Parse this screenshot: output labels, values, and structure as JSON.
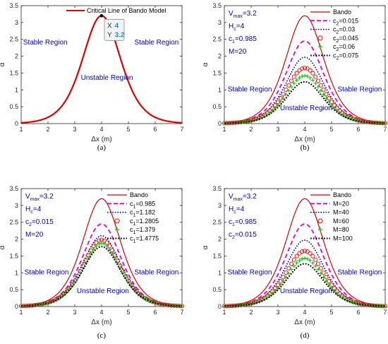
{
  "colors": {
    "bando": "#e00000",
    "c015": "#dd00dd",
    "c03": "#0000cc",
    "c045": "#ff0000",
    "c06": "#00bb00",
    "c075": "#000000",
    "text_blue": "#0000cc",
    "datatip_value": "#1a8fd8"
  },
  "chart_data": [
    {
      "type": "line",
      "panel": "(a)",
      "caption": "(a)",
      "xlabel": "Δx (m)",
      "ylabel": "α",
      "xlim": [
        1,
        7
      ],
      "ylim": [
        0,
        3.5
      ],
      "xticks": [
        "1",
        "2",
        "3",
        "4",
        "5",
        "6",
        "7"
      ],
      "yticks": [
        "0",
        "0.5",
        "1",
        "1.5",
        "2",
        "2.5",
        "3",
        "3.5"
      ],
      "legend": [
        "Critical Line of Bando Model"
      ],
      "legend_position": "top-center",
      "grid": false,
      "series": [
        {
          "name": "Critical Line of Bando Model",
          "peak_x": 4,
          "peak_y": 3.2,
          "style": "line",
          "color": "#e00000"
        }
      ],
      "params": [],
      "annotations": [
        {
          "text": "Stable Region",
          "side": "left"
        },
        {
          "text": "Stable Region",
          "side": "right"
        },
        {
          "text": "Unstable Region",
          "side": "center"
        }
      ],
      "datatip": {
        "x_label": "X",
        "x_value": "4",
        "y_label": "Y",
        "y_value": "3.2"
      }
    },
    {
      "type": "line",
      "panel": "(b)",
      "caption": "(b)",
      "xlabel": "Δx (m)",
      "ylabel": "α",
      "xlim": [
        1,
        7
      ],
      "ylim": [
        0,
        3.5
      ],
      "xticks": [
        "1",
        "2",
        "3",
        "4",
        "5",
        "6",
        "7"
      ],
      "yticks": [
        "0",
        "0.5",
        "1",
        "1.5",
        "2",
        "2.5",
        "3",
        "3.5"
      ],
      "legend_position": "top-right",
      "grid": false,
      "series": [
        {
          "name": "Bando",
          "peak_x": 4,
          "peak_y": 3.2,
          "style": "line",
          "color": "#e00000"
        },
        {
          "name": "c2=0.015",
          "legend_main": "c",
          "legend_sub": "2",
          "legend_rest": "=0.015",
          "peak_x": 4,
          "peak_y": 2.45,
          "style": "dash",
          "color": "#dd00dd"
        },
        {
          "name": "c2=0.03",
          "legend_main": "c",
          "legend_sub": "2",
          "legend_rest": "=0.03",
          "peak_x": 4,
          "peak_y": 1.97,
          "style": "dot",
          "color": "#0000cc"
        },
        {
          "name": "c2=0.045",
          "legend_main": "c",
          "legend_sub": "2",
          "legend_rest": "=0.045",
          "peak_x": 4,
          "peak_y": 1.65,
          "style": "circle",
          "color": "#ff0000"
        },
        {
          "name": "c2=0.06",
          "legend_main": "c",
          "legend_sub": "2",
          "legend_rest": "=0.06",
          "peak_x": 4,
          "peak_y": 1.42,
          "style": "plus",
          "color": "#00bb00"
        },
        {
          "name": "c2=0.075",
          "legend_main": "c",
          "legend_sub": "2",
          "legend_rest": "=0.075",
          "peak_x": 4,
          "peak_y": 1.24,
          "style": "dotthick",
          "color": "#000000"
        }
      ],
      "params": [
        {
          "main": "V",
          "sub": "max",
          "rest": "=3.2"
        },
        {
          "main": "H",
          "sub": "c",
          "rest": "=4"
        },
        {
          "main": "c",
          "sub": "1",
          "rest": "=0.985"
        },
        {
          "main": "M=20",
          "sub": "",
          "rest": ""
        }
      ],
      "annotations": [
        {
          "text": "Stable Region",
          "side": "left"
        },
        {
          "text": "Stable Region",
          "side": "right"
        },
        {
          "text": "Unstable Region",
          "side": "center"
        }
      ]
    },
    {
      "type": "line",
      "panel": "(c)",
      "caption": "(c)",
      "xlabel": "Δx (m)",
      "ylabel": "α",
      "xlim": [
        1,
        7
      ],
      "ylim": [
        0,
        3.5
      ],
      "xticks": [
        "1",
        "2",
        "3",
        "4",
        "5",
        "6",
        "7"
      ],
      "yticks": [
        "0",
        "0.5",
        "1",
        "1.5",
        "2",
        "2.5",
        "3",
        "3.5"
      ],
      "legend_position": "top-right",
      "grid": false,
      "series": [
        {
          "name": "Bando",
          "peak_x": 4,
          "peak_y": 3.2,
          "style": "line",
          "color": "#e00000"
        },
        {
          "name": "c1=0.985",
          "legend_main": "c",
          "legend_sub": "1",
          "legend_rest": "=0.985",
          "peak_x": 4,
          "peak_y": 2.45,
          "style": "dash",
          "color": "#dd00dd"
        },
        {
          "name": "c1=1.182",
          "legend_main": "c",
          "legend_sub": "1",
          "legend_rest": "=1.182",
          "peak_x": 4,
          "peak_y": 2.1,
          "style": "dot",
          "color": "#0000cc"
        },
        {
          "name": "c1=1.2805",
          "legend_main": "c",
          "legend_sub": "1",
          "legend_rest": "=1.2805",
          "peak_x": 4,
          "peak_y": 1.98,
          "style": "circle",
          "color": "#ff0000"
        },
        {
          "name": "c1=1.379",
          "legend_main": "c",
          "legend_sub": "1",
          "legend_rest": "=1.379",
          "peak_x": 4,
          "peak_y": 1.88,
          "style": "plus",
          "color": "#00bb00"
        },
        {
          "name": "c1=1.4775",
          "legend_main": "c",
          "legend_sub": "1",
          "legend_rest": "=1.4775",
          "peak_x": 4,
          "peak_y": 1.78,
          "style": "dotthick",
          "color": "#000000"
        }
      ],
      "params": [
        {
          "main": "V",
          "sub": "max",
          "rest": "=3.2"
        },
        {
          "main": "H",
          "sub": "c",
          "rest": "=4"
        },
        {
          "main": "c",
          "sub": "2",
          "rest": "=0.015"
        },
        {
          "main": "M=20",
          "sub": "",
          "rest": ""
        }
      ],
      "annotations": [
        {
          "text": "Stable Region",
          "side": "left"
        },
        {
          "text": "Stable Region",
          "side": "right"
        },
        {
          "text": "Unstable Region",
          "side": "center"
        }
      ]
    },
    {
      "type": "line",
      "panel": "(d)",
      "caption": "(d)",
      "xlabel": "Δx (m)",
      "ylabel": "α",
      "xlim": [
        1,
        7
      ],
      "ylim": [
        0,
        3.5
      ],
      "xticks": [
        "1",
        "2",
        "3",
        "4",
        "5",
        "6",
        "7"
      ],
      "yticks": [
        "0",
        "0.5",
        "1",
        "1.5",
        "2",
        "2.5",
        "3",
        "3.5"
      ],
      "legend_position": "top-right",
      "grid": false,
      "series": [
        {
          "name": "Bando",
          "peak_x": 4,
          "peak_y": 3.2,
          "style": "line",
          "color": "#e00000"
        },
        {
          "name": "M=20",
          "legend_main": "M=20",
          "legend_sub": "",
          "legend_rest": "",
          "peak_x": 4,
          "peak_y": 2.45,
          "style": "dash",
          "color": "#dd00dd"
        },
        {
          "name": "M=40",
          "legend_main": "M=40",
          "legend_sub": "",
          "legend_rest": "",
          "peak_x": 4,
          "peak_y": 1.97,
          "style": "dot",
          "color": "#0000cc"
        },
        {
          "name": "M=60",
          "legend_main": "M=60",
          "legend_sub": "",
          "legend_rest": "",
          "peak_x": 4,
          "peak_y": 1.65,
          "style": "circle",
          "color": "#ff0000"
        },
        {
          "name": "M=80",
          "legend_main": "M=80",
          "legend_sub": "",
          "legend_rest": "",
          "peak_x": 4,
          "peak_y": 1.43,
          "style": "plus",
          "color": "#00bb00"
        },
        {
          "name": "M=100",
          "legend_main": "M=100",
          "legend_sub": "",
          "legend_rest": "",
          "peak_x": 4,
          "peak_y": 1.27,
          "style": "dotthick",
          "color": "#000000"
        }
      ],
      "params": [
        {
          "main": "V",
          "sub": "max",
          "rest": "=3.2"
        },
        {
          "main": "H",
          "sub": "c",
          "rest": "=4"
        },
        {
          "main": "c",
          "sub": "1",
          "rest": "=0.985"
        },
        {
          "main": "c",
          "sub": "2",
          "rest": "=0.015"
        }
      ],
      "annotations": [
        {
          "text": "Stable Region",
          "side": "left"
        },
        {
          "text": "Stable Region",
          "side": "right"
        },
        {
          "text": "Unstable Region",
          "side": "center"
        }
      ]
    }
  ]
}
